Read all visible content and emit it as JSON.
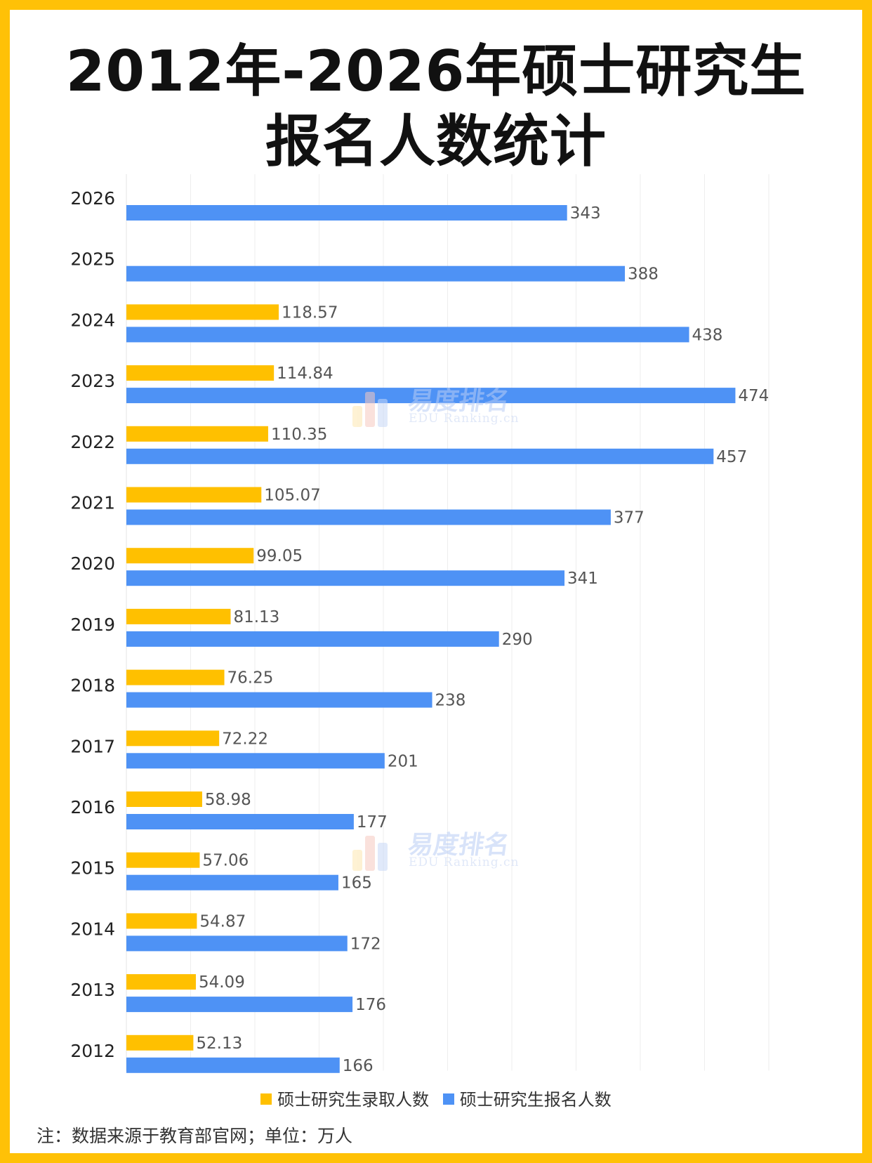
{
  "title_line1": "2012年-2026年硕士研究生",
  "title_line2": "报名人数统计",
  "note": "注：数据来源于教育部官网；单位：万人",
  "watermark": {
    "cn": "易度排名",
    "en": "EDU Ranking.cn"
  },
  "colors": {
    "admitted": "#ffc000",
    "registered": "#4e92f5",
    "frame": "#ffc107",
    "grid": "#eeeeee"
  },
  "chart_data": {
    "type": "bar",
    "orientation": "horizontal",
    "categories": [
      "2026",
      "2025",
      "2024",
      "2023",
      "2022",
      "2021",
      "2020",
      "2019",
      "2018",
      "2017",
      "2016",
      "2015",
      "2014",
      "2013",
      "2012"
    ],
    "series": [
      {
        "name": "硕士研究生录取人数",
        "values": [
          null,
          null,
          118.57,
          114.84,
          110.35,
          105.07,
          99.05,
          81.13,
          76.25,
          72.22,
          58.98,
          57.06,
          54.87,
          54.09,
          52.13
        ],
        "labels": [
          "",
          "",
          "118.57",
          "114.84",
          "110.35",
          "105.07",
          "99.05",
          "81.13",
          "76.25",
          "72.22",
          "58.98",
          "57.06",
          "54.87",
          "54.09",
          "52.13"
        ]
      },
      {
        "name": "硕士研究生报名人数",
        "values": [
          343,
          388,
          438,
          474,
          457,
          377,
          341,
          290,
          238,
          201,
          177,
          165,
          172,
          176,
          166
        ],
        "labels": [
          "343",
          "388",
          "438",
          "474",
          "457",
          "377",
          "341",
          "290",
          "238",
          "201",
          "177",
          "165",
          "172",
          "176",
          "166"
        ]
      }
    ],
    "xlim": [
      0,
      500
    ],
    "grid": true,
    "legend_position": "bottom"
  }
}
